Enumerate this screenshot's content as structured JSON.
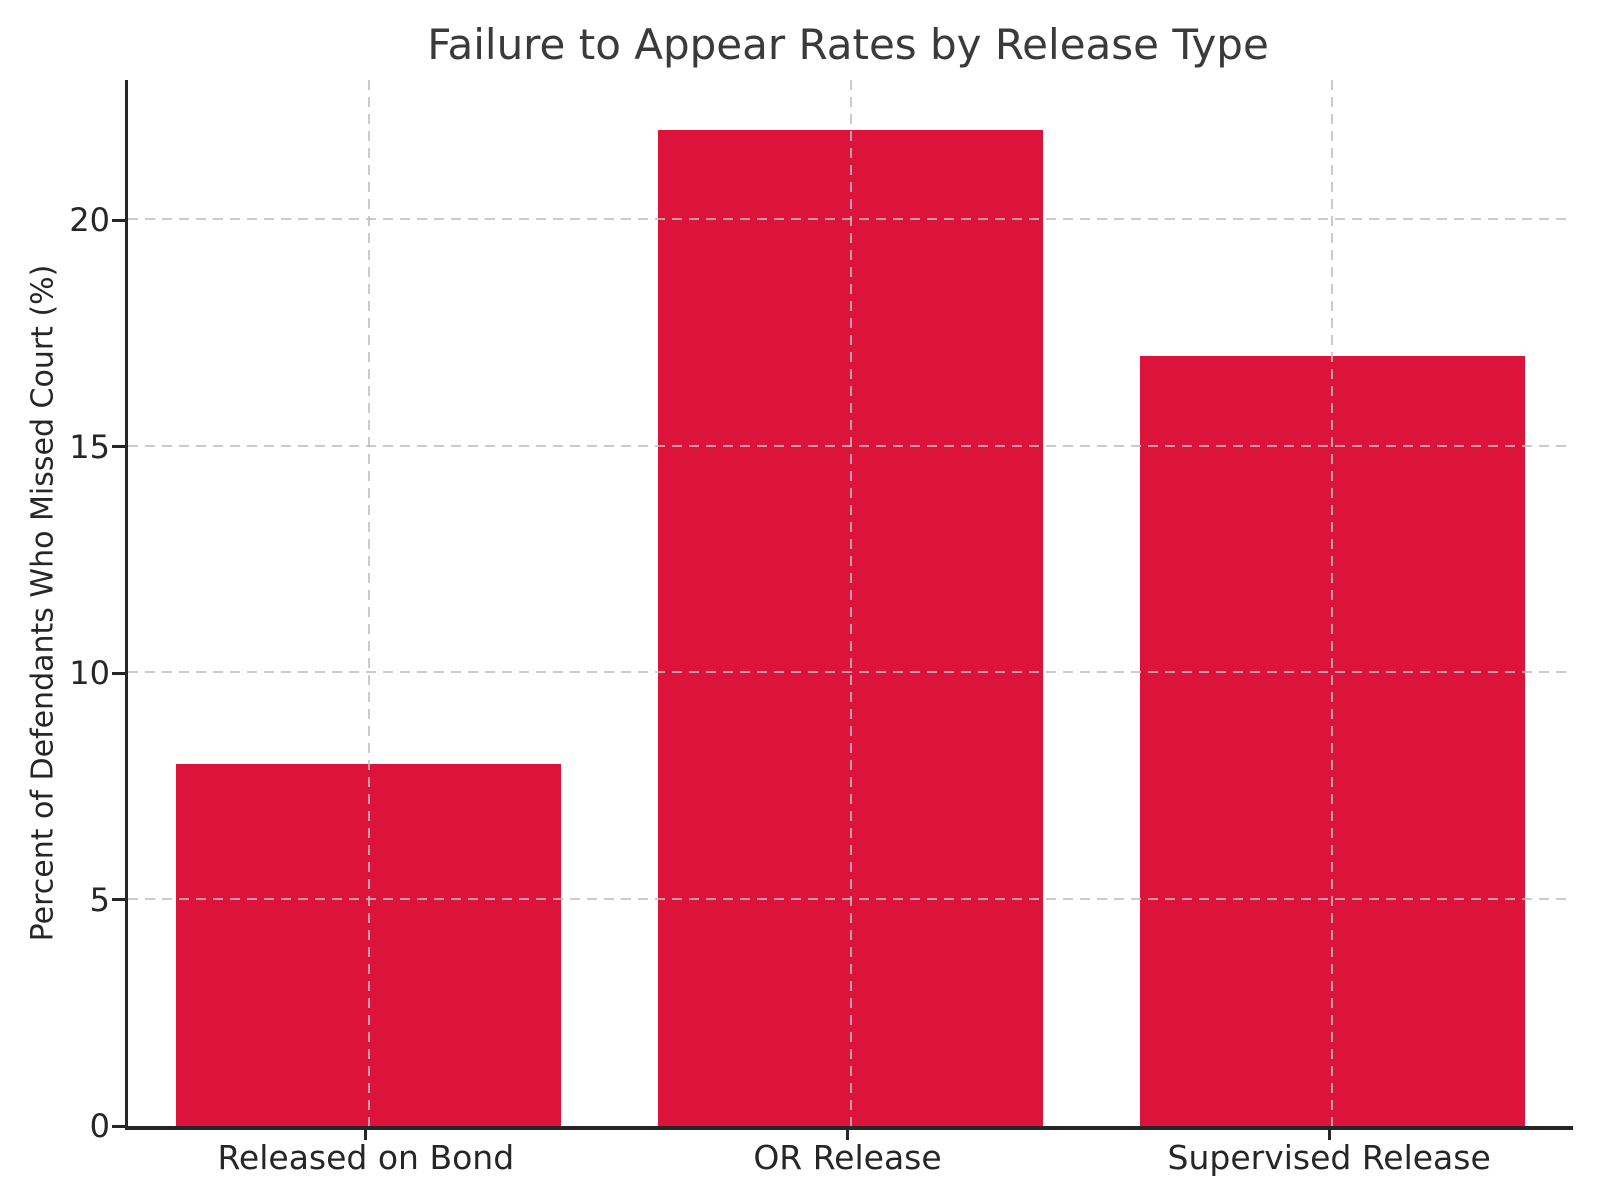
{
  "chart_data": {
    "type": "bar",
    "title": "Failure to Appear Rates by Release Type",
    "xlabel": "",
    "ylabel": "Percent of Defendants Who Missed Court (%)",
    "categories": [
      "Released on Bond",
      "OR Release",
      "Supervised Release"
    ],
    "values": [
      8,
      22,
      17
    ],
    "yticks": [
      0,
      5,
      10,
      15,
      20
    ],
    "ylim": [
      0,
      23.1
    ],
    "bar_width_fraction": 0.8,
    "legend_position": "none",
    "grid": {
      "on": true,
      "style": "dashed",
      "drawn_above_bars": true
    },
    "colors": {
      "bar": "#DC143C",
      "spine": "#262626",
      "tick_label": "#262626",
      "title": "#3A3A3A",
      "grid": "#BEBEBE",
      "background": "#FFFFFF"
    }
  }
}
